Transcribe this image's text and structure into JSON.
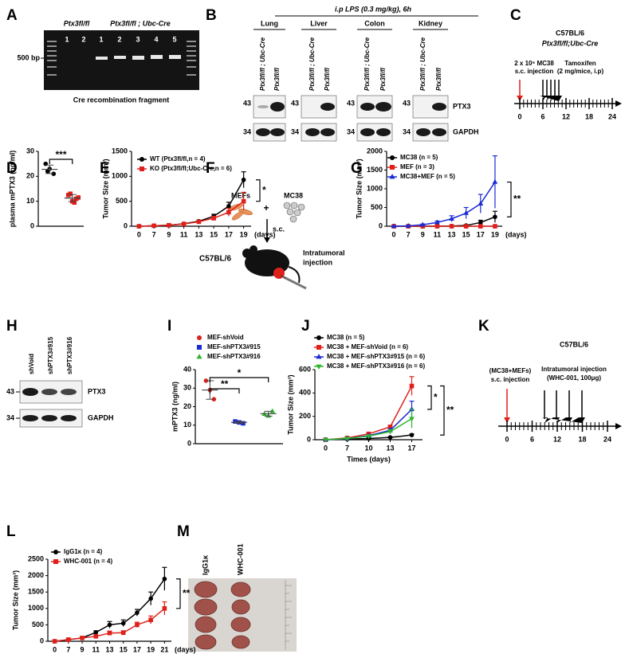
{
  "panels": {
    "labels": [
      "A",
      "B",
      "C",
      "D",
      "E",
      "F",
      "G",
      "H",
      "I",
      "J",
      "K",
      "L",
      "M"
    ],
    "A": {
      "genotype_wt": "Ptx3fl/fl",
      "genotype_cre": "Ptx3fl/fl ; Ubc-Cre",
      "lanes": [
        "1",
        "2",
        "1",
        "2",
        "3",
        "4",
        "5"
      ],
      "marker": "500 bp",
      "caption": "Cre recombination fragment"
    },
    "B": {
      "treatment": "i.p LPS (0.3 mg/kg), 6h",
      "tissues": [
        "Lung",
        "Liver",
        "Colon",
        "Kidney"
      ],
      "lane_cre": "Ptx3fl/fl ; Ubc-Cre",
      "lane_wt": "Ptx3fl/fl",
      "mw_top": "43",
      "mw_bottom": "34",
      "protein": "PTX3",
      "control": "GAPDH"
    },
    "C": {
      "strain": "C57BL/6",
      "genotype": "Ptx3fl/fl;Ubc-Cre",
      "injection": [
        "2 x 10⁵ MC38",
        "s.c. injection"
      ],
      "tamoxifen": [
        "Tamoxifen",
        "(2 mg/mice, i.p)"
      ],
      "ticks": [
        0,
        6,
        12,
        18,
        24
      ]
    },
    "F": {
      "mefs": "MEFs",
      "plus": "+",
      "mc38": "MC38",
      "route": "s.c.",
      "strain": "C57BL/6",
      "injection": [
        "Intratumoral",
        "injection"
      ]
    },
    "H": {
      "lanes": [
        "shVoid",
        "shPTX3#915",
        "shPTX3#916"
      ],
      "mw_top": "43",
      "mw_bottom": "34",
      "protein": "PTX3",
      "control": "GAPDH"
    },
    "K": {
      "strain": "C57BL/6",
      "injection": [
        "(MC38+MEFs)",
        "s.c. injection"
      ],
      "treatment": [
        "Intratumoral injection",
        "(WHC-001, 100μg)"
      ],
      "ticks": [
        0,
        6,
        12,
        18,
        24
      ]
    },
    "M": {
      "groups": [
        "IgG1κ",
        "WHC-001"
      ]
    }
  },
  "chart_data": [
    {
      "type": "dot",
      "ylabel": "plasma mPTX3 (ng/ml)",
      "ylim": [
        0,
        30
      ],
      "yticks": [
        0,
        10,
        20,
        30
      ],
      "series": [
        {
          "color": "#000000",
          "marker": "circle",
          "values": [
            25,
            23,
            21,
            22
          ],
          "mean": 22.8,
          "error": 1.7
        },
        {
          "color": "#e0201b",
          "marker": "square",
          "values": [
            12.5,
            10,
            11,
            13,
            9.5,
            11.5
          ],
          "mean": 11.3,
          "error": 1.4
        }
      ],
      "annotations": [
        "***"
      ]
    },
    {
      "type": "line",
      "ylabel": "Tumor Size (mm³)",
      "xlabel": "(days)",
      "categories": [
        "0",
        "7",
        "9",
        "11",
        "13",
        "15",
        "17",
        "19"
      ],
      "ylim": [
        0,
        1500
      ],
      "yticks": [
        0,
        500,
        1000,
        1500
      ],
      "series": [
        {
          "name": "WT (Ptx3fl/fl,n = 4)",
          "color": "#000000",
          "marker": "circle",
          "values": [
            0,
            10,
            20,
            50,
            100,
            200,
            400,
            930
          ],
          "errors": [
            0,
            5,
            5,
            10,
            20,
            40,
            80,
            160
          ]
        },
        {
          "name": "KO (Ptx3fl/fl;Ubc-Cre,n = 6)",
          "color": "#e0201b",
          "marker": "square",
          "values": [
            0,
            10,
            20,
            45,
            90,
            160,
            280,
            500
          ],
          "errors": [
            0,
            5,
            5,
            10,
            20,
            40,
            80,
            180
          ]
        }
      ],
      "annotations": [
        "*"
      ]
    },
    {
      "type": "line",
      "ylabel": "Tumor Size (mm³)",
      "xlabel": "(days)",
      "categories": [
        "0",
        "7",
        "9",
        "11",
        "13",
        "15",
        "17",
        "19"
      ],
      "ylim": [
        0,
        2000
      ],
      "yticks": [
        0,
        500,
        1000,
        1500,
        2000
      ],
      "series": [
        {
          "name": "MC38 (n = 5)",
          "color": "#000000",
          "marker": "circle",
          "values": [
            0,
            0,
            0,
            0,
            5,
            20,
            100,
            250
          ],
          "errors": [
            0,
            0,
            0,
            0,
            5,
            20,
            60,
            150
          ]
        },
        {
          "name": "MEF (n = 3)",
          "color": "#e0201b",
          "marker": "square",
          "values": [
            0,
            0,
            0,
            0,
            0,
            0,
            0,
            0
          ],
          "errors": [
            0,
            0,
            0,
            0,
            0,
            0,
            0,
            0
          ]
        },
        {
          "name": "MC38+MEF (n = 5)",
          "color": "#1a2bd6",
          "marker": "triangle",
          "values": [
            0,
            10,
            40,
            100,
            200,
            350,
            600,
            1180
          ],
          "errors": [
            0,
            5,
            20,
            40,
            80,
            150,
            250,
            700
          ]
        }
      ],
      "annotations": [
        "**"
      ]
    },
    {
      "type": "dot",
      "ylabel": "mPTX3 (ng/ml)",
      "ylim": [
        0,
        40
      ],
      "yticks": [
        0,
        10,
        20,
        30,
        40
      ],
      "series": [
        {
          "name": "MEF-shVoid",
          "color": "#e0201b",
          "marker": "circle",
          "values": [
            34,
            29,
            24
          ],
          "mean": 29,
          "error": 5
        },
        {
          "name": "MEF-shPTX3#915",
          "color": "#1a2bd6",
          "marker": "square",
          "values": [
            12,
            11.5,
            11
          ],
          "mean": 11.5,
          "error": 0.5
        },
        {
          "name": "MEF-shPTX3#916",
          "color": "#2fb52f",
          "marker": "triangle",
          "values": [
            16,
            15,
            17.5
          ],
          "mean": 16.2,
          "error": 1.3
        }
      ],
      "annotations": [
        "**",
        "*"
      ]
    },
    {
      "type": "line",
      "ylabel": "Tumor Size (mm³)",
      "xlabel": "Times (days)",
      "categories": [
        "0",
        "7",
        "10",
        "13",
        "17"
      ],
      "ylim": [
        0,
        600
      ],
      "yticks": [
        0,
        200,
        400,
        600
      ],
      "series": [
        {
          "name": "MC38 (n = 5)",
          "color": "#000000",
          "marker": "circle",
          "values": [
            0,
            5,
            10,
            20,
            40
          ],
          "errors": [
            0,
            2,
            3,
            5,
            10
          ]
        },
        {
          "name": "MC38 + MEF-shVoid (n = 6)",
          "color": "#e0201b",
          "marker": "square",
          "values": [
            0,
            15,
            50,
            110,
            460
          ],
          "errors": [
            0,
            3,
            8,
            15,
            80
          ]
        },
        {
          "name": "MC38 + MEF-shPTX3#915 (n = 6)",
          "color": "#1a2bd6",
          "marker": "triangle",
          "values": [
            0,
            10,
            35,
            80,
            260
          ],
          "errors": [
            0,
            3,
            8,
            15,
            70
          ]
        },
        {
          "name": "MC38 + MEF-shPTX3#916 (n = 6)",
          "color": "#2fb52f",
          "marker": "triangle-down",
          "values": [
            0,
            10,
            30,
            70,
            180
          ],
          "errors": [
            0,
            3,
            8,
            15,
            80
          ]
        }
      ],
      "annotations": [
        "*",
        "**"
      ]
    },
    {
      "type": "line",
      "ylabel": "Tumor Size (mm³)",
      "xlabel": "(days)",
      "categories": [
        "0",
        "7",
        "9",
        "11",
        "13",
        "15",
        "17",
        "19",
        "21"
      ],
      "ylim": [
        0,
        2500
      ],
      "yticks": [
        0,
        500,
        1000,
        1500,
        2000,
        2500
      ],
      "series": [
        {
          "name": "IgG1κ (n = 4)",
          "color": "#000000",
          "marker": "circle",
          "values": [
            0,
            50,
            100,
            270,
            500,
            550,
            870,
            1300,
            1900
          ],
          "errors": [
            0,
            20,
            30,
            50,
            100,
            100,
            100,
            200,
            350
          ]
        },
        {
          "name": "WHC-001 (n = 4)",
          "color": "#e0201b",
          "marker": "square",
          "values": [
            0,
            50,
            100,
            150,
            250,
            260,
            500,
            650,
            1000
          ],
          "errors": [
            0,
            20,
            20,
            30,
            60,
            60,
            80,
            120,
            200
          ]
        }
      ],
      "annotations": [
        "**"
      ]
    }
  ]
}
